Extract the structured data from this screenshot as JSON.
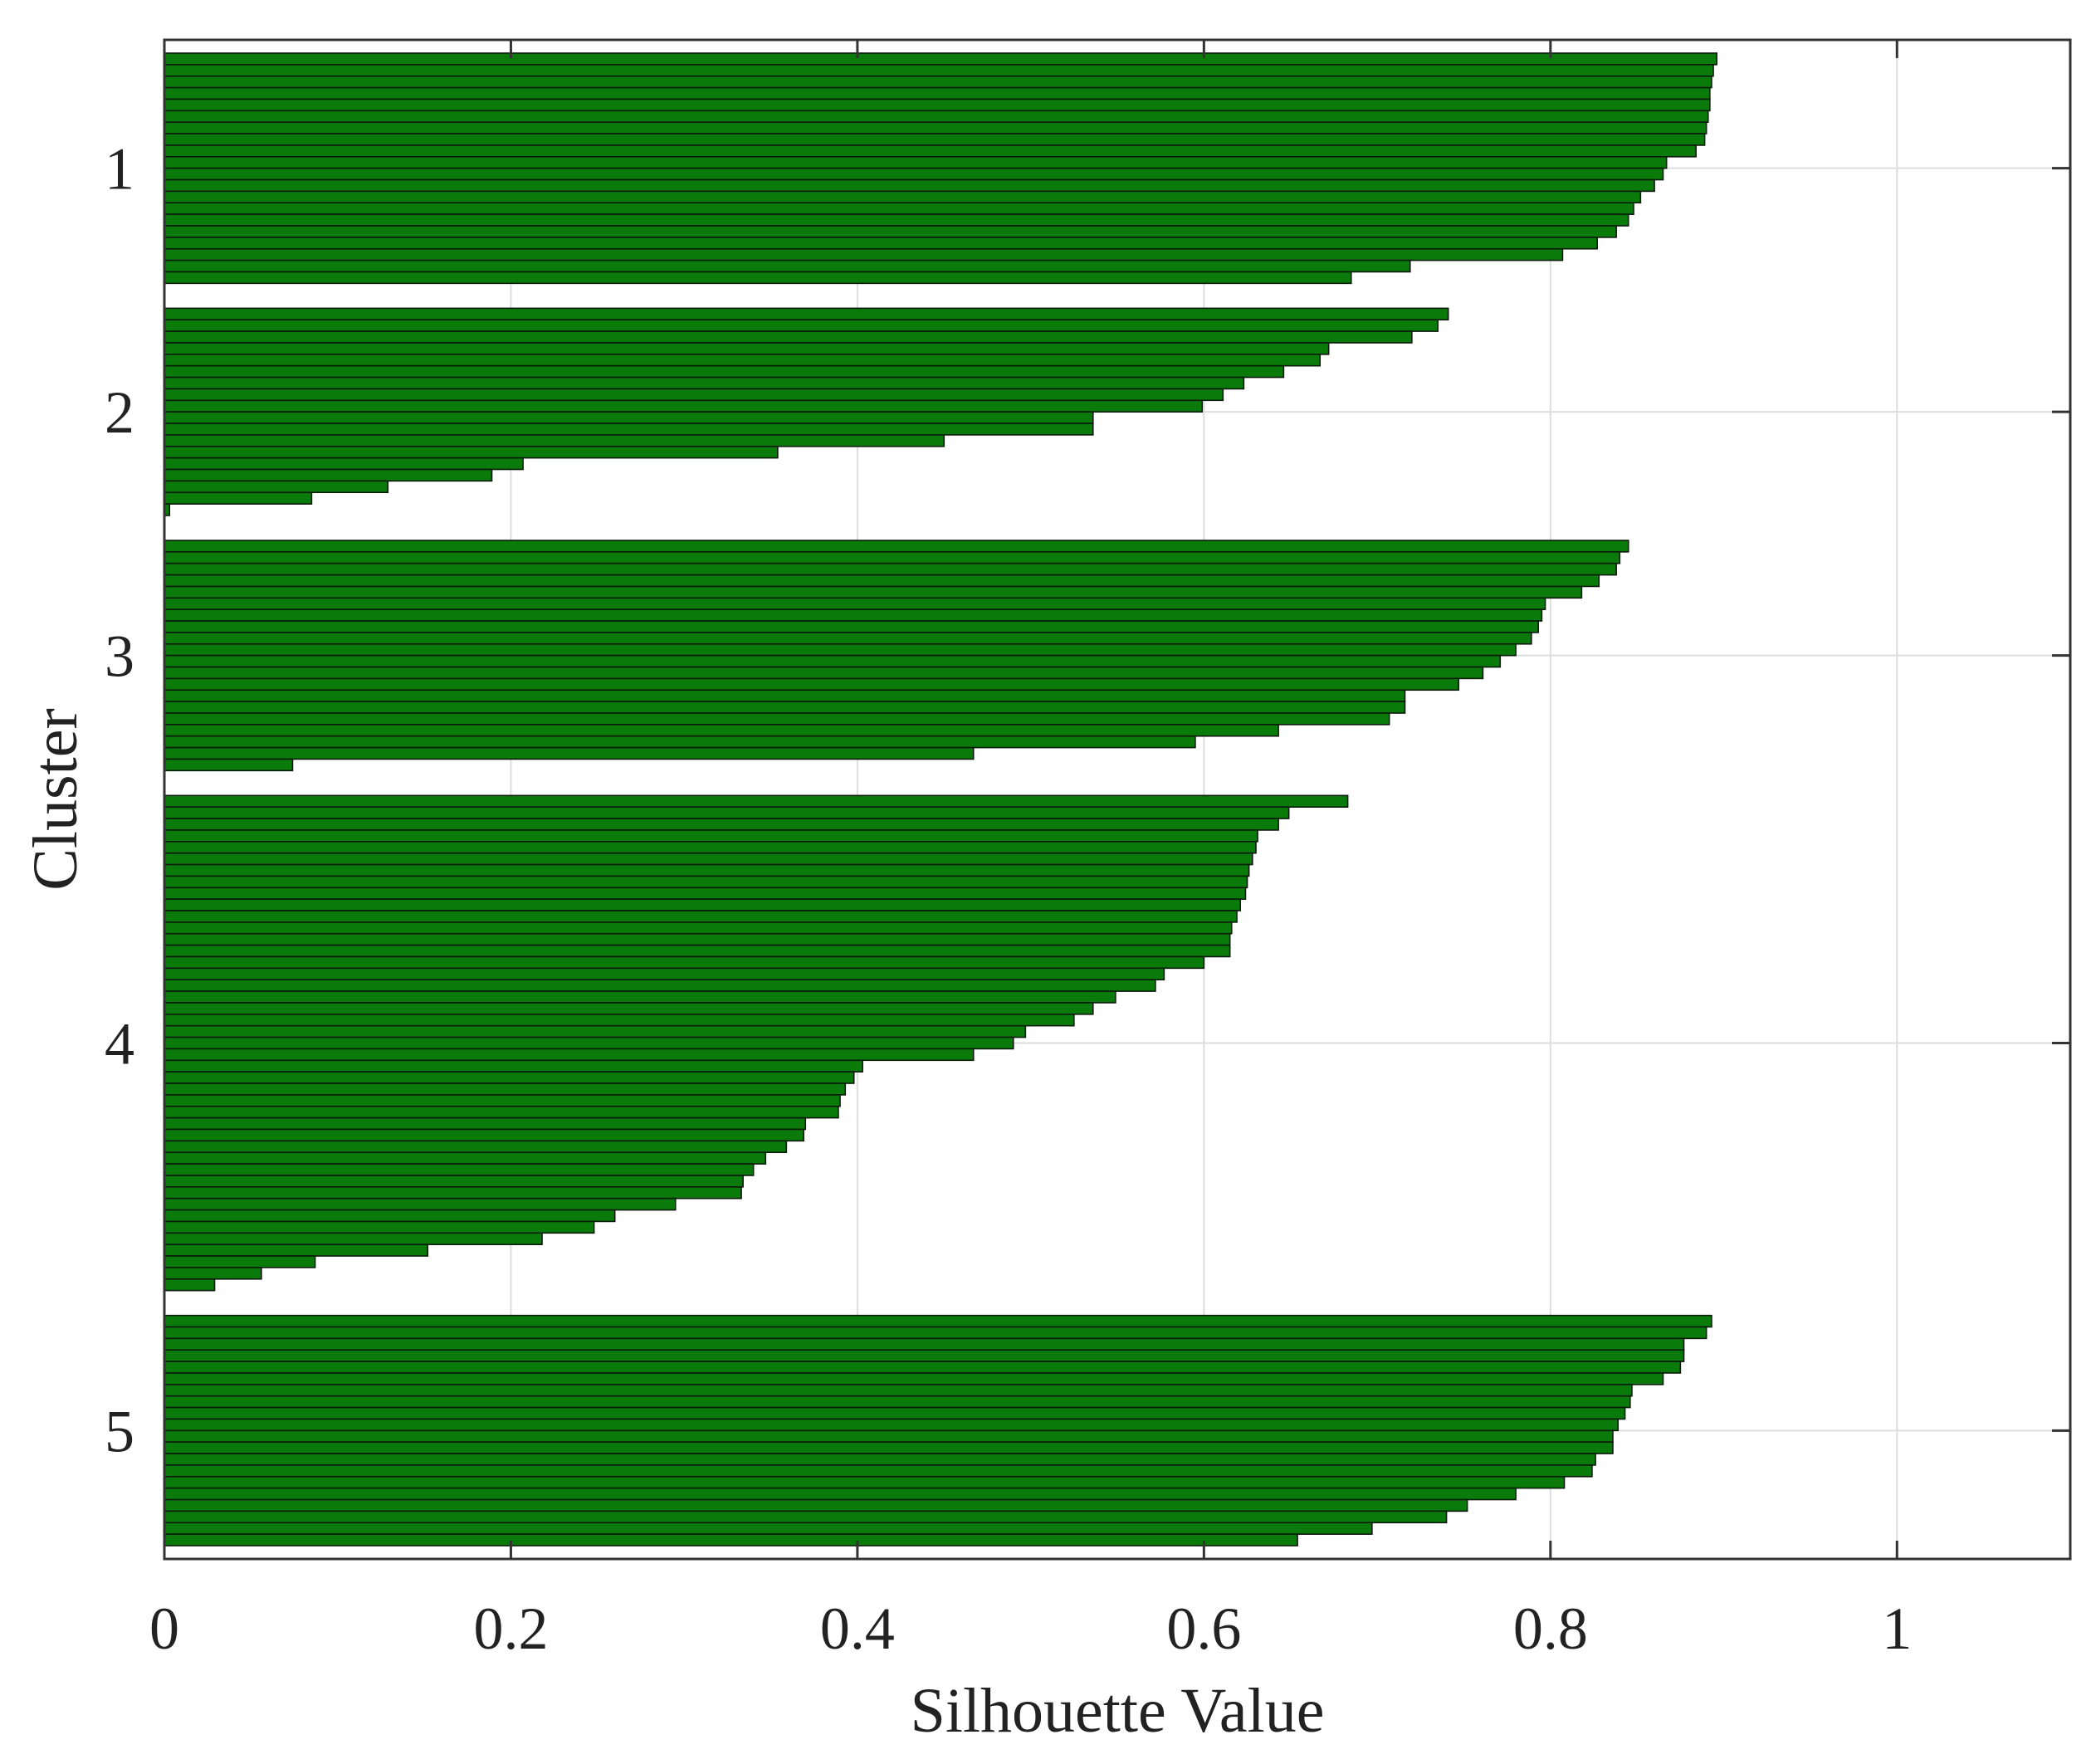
{
  "chart_data": {
    "type": "bar",
    "orientation": "horizontal",
    "title": "",
    "xlabel": "Silhouette Value",
    "ylabel": "Cluster",
    "xlim": [
      0,
      1.1
    ],
    "xticks": [
      0,
      0.2,
      0.4,
      0.6,
      0.8,
      1
    ],
    "xtick_labels": [
      "0",
      "0.2",
      "0.4",
      "0.6",
      "0.8",
      "1"
    ],
    "grid": true,
    "colors": {
      "bar_fill": "#0a7a0a",
      "bar_edge": "#0b1a0b",
      "grid": "#dddddd",
      "axis": "#333333"
    },
    "clusters": [
      {
        "label": "1",
        "values": [
          0.896,
          0.894,
          0.893,
          0.892,
          0.892,
          0.891,
          0.89,
          0.889,
          0.884,
          0.867,
          0.865,
          0.86,
          0.852,
          0.848,
          0.845,
          0.838,
          0.827,
          0.807,
          0.719,
          0.685
        ]
      },
      {
        "label": "2",
        "values": [
          0.741,
          0.735,
          0.72,
          0.672,
          0.667,
          0.646,
          0.623,
          0.611,
          0.599,
          0.536,
          0.536,
          0.45,
          0.354,
          0.207,
          0.189,
          0.129,
          0.085,
          0.003
        ]
      },
      {
        "label": "3",
        "values": [
          0.845,
          0.84,
          0.838,
          0.828,
          0.818,
          0.797,
          0.795,
          0.793,
          0.789,
          0.78,
          0.771,
          0.761,
          0.747,
          0.716,
          0.716,
          0.707,
          0.643,
          0.595,
          0.467,
          0.074
        ]
      },
      {
        "label": "4",
        "values": [
          0.683,
          0.649,
          0.643,
          0.631,
          0.63,
          0.628,
          0.626,
          0.625,
          0.624,
          0.621,
          0.619,
          0.616,
          0.615,
          0.615,
          0.6,
          0.577,
          0.572,
          0.549,
          0.536,
          0.525,
          0.497,
          0.49,
          0.467,
          0.403,
          0.398,
          0.393,
          0.39,
          0.389,
          0.37,
          0.369,
          0.359,
          0.347,
          0.34,
          0.334,
          0.333,
          0.295,
          0.26,
          0.248,
          0.218,
          0.152,
          0.087,
          0.056,
          0.029
        ]
      },
      {
        "label": "5",
        "values": [
          0.893,
          0.89,
          0.877,
          0.877,
          0.875,
          0.865,
          0.847,
          0.846,
          0.843,
          0.839,
          0.836,
          0.836,
          0.826,
          0.824,
          0.808,
          0.78,
          0.752,
          0.74,
          0.697,
          0.654
        ]
      }
    ]
  }
}
